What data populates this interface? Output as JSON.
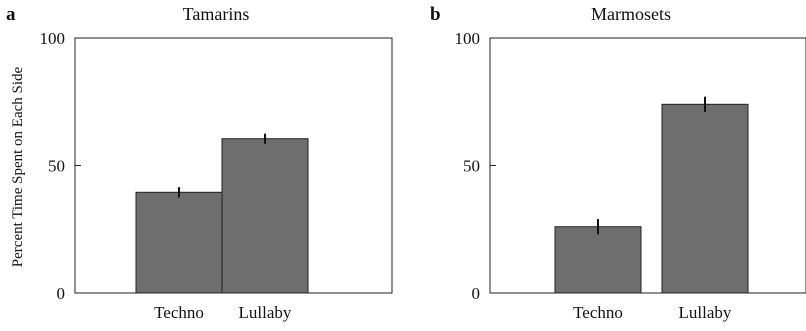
{
  "chart_data": [
    {
      "type": "bar",
      "panel_letter": "a",
      "title": "Tamarins",
      "ylabel": "Percent Time Spent on Each Side",
      "xlabel": "",
      "categories": [
        "Techno",
        "Lullaby"
      ],
      "values": [
        39.5,
        60.5
      ],
      "errors": [
        2.0,
        2.0
      ],
      "ylim": [
        0,
        100
      ],
      "yticks": [
        0,
        50,
        100
      ],
      "bar_color": "#6e6e6e",
      "grid": false
    },
    {
      "type": "bar",
      "panel_letter": "b",
      "title": "Marmosets",
      "ylabel": "",
      "xlabel": "",
      "categories": [
        "Techno",
        "Lullaby"
      ],
      "values": [
        26,
        74
      ],
      "errors": [
        3.0,
        3.0
      ],
      "ylim": [
        0,
        100
      ],
      "yticks": [
        0,
        50,
        100
      ],
      "bar_color": "#6e6e6e",
      "grid": false
    }
  ]
}
